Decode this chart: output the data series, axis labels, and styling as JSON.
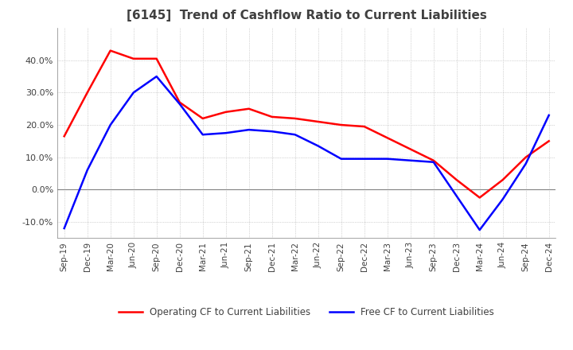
{
  "title": "[6145]  Trend of Cashflow Ratio to Current Liabilities",
  "x_labels": [
    "Sep-19",
    "Dec-19",
    "Mar-20",
    "Jun-20",
    "Sep-20",
    "Dec-20",
    "Mar-21",
    "Jun-21",
    "Sep-21",
    "Dec-21",
    "Mar-22",
    "Jun-22",
    "Sep-22",
    "Dec-22",
    "Mar-23",
    "Jun-23",
    "Sep-23",
    "Dec-23",
    "Mar-24",
    "Jun-24",
    "Sep-24",
    "Dec-24"
  ],
  "operating_cf": [
    16.5,
    30.0,
    43.0,
    40.5,
    40.5,
    27.0,
    22.0,
    24.0,
    25.0,
    22.5,
    22.0,
    21.0,
    20.0,
    19.5,
    16.0,
    12.5,
    9.0,
    3.0,
    -2.5,
    3.0,
    10.0,
    15.0
  ],
  "free_cf": [
    -12.0,
    6.0,
    20.0,
    30.0,
    35.0,
    26.5,
    17.0,
    17.5,
    18.5,
    18.0,
    17.0,
    13.5,
    9.5,
    9.5,
    9.5,
    9.0,
    8.5,
    -2.0,
    -12.5,
    -3.0,
    8.0,
    23.0
  ],
  "ylim": [
    -15,
    50
  ],
  "yticks": [
    -10.0,
    0.0,
    10.0,
    20.0,
    30.0,
    40.0
  ],
  "operating_color": "#ff0000",
  "free_color": "#0000ff",
  "background_color": "#ffffff",
  "grid_color": "#b0b0b0",
  "title_fontsize": 11,
  "title_color": "#404040"
}
